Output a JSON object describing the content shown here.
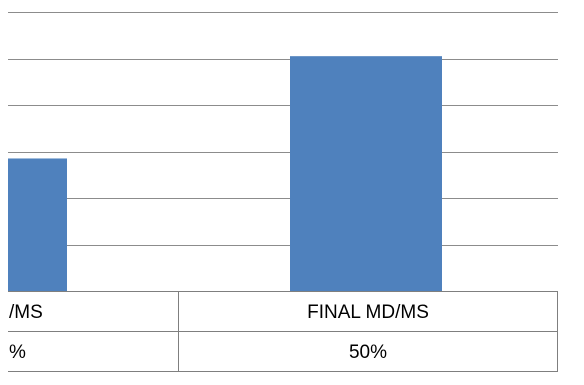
{
  "chart_data": {
    "type": "bar",
    "categories": [
      "/MS",
      "FINAL MD/MS"
    ],
    "values": [
      2.85,
      5.05
    ],
    "table_rows": [
      [
        "%",
        "50%"
      ]
    ],
    "ylim": [
      0,
      6
    ],
    "grid": true,
    "colors": {
      "bar": "#4f81bd",
      "grid": "#8c8c8c",
      "table_border": "#7f7f7f"
    }
  }
}
